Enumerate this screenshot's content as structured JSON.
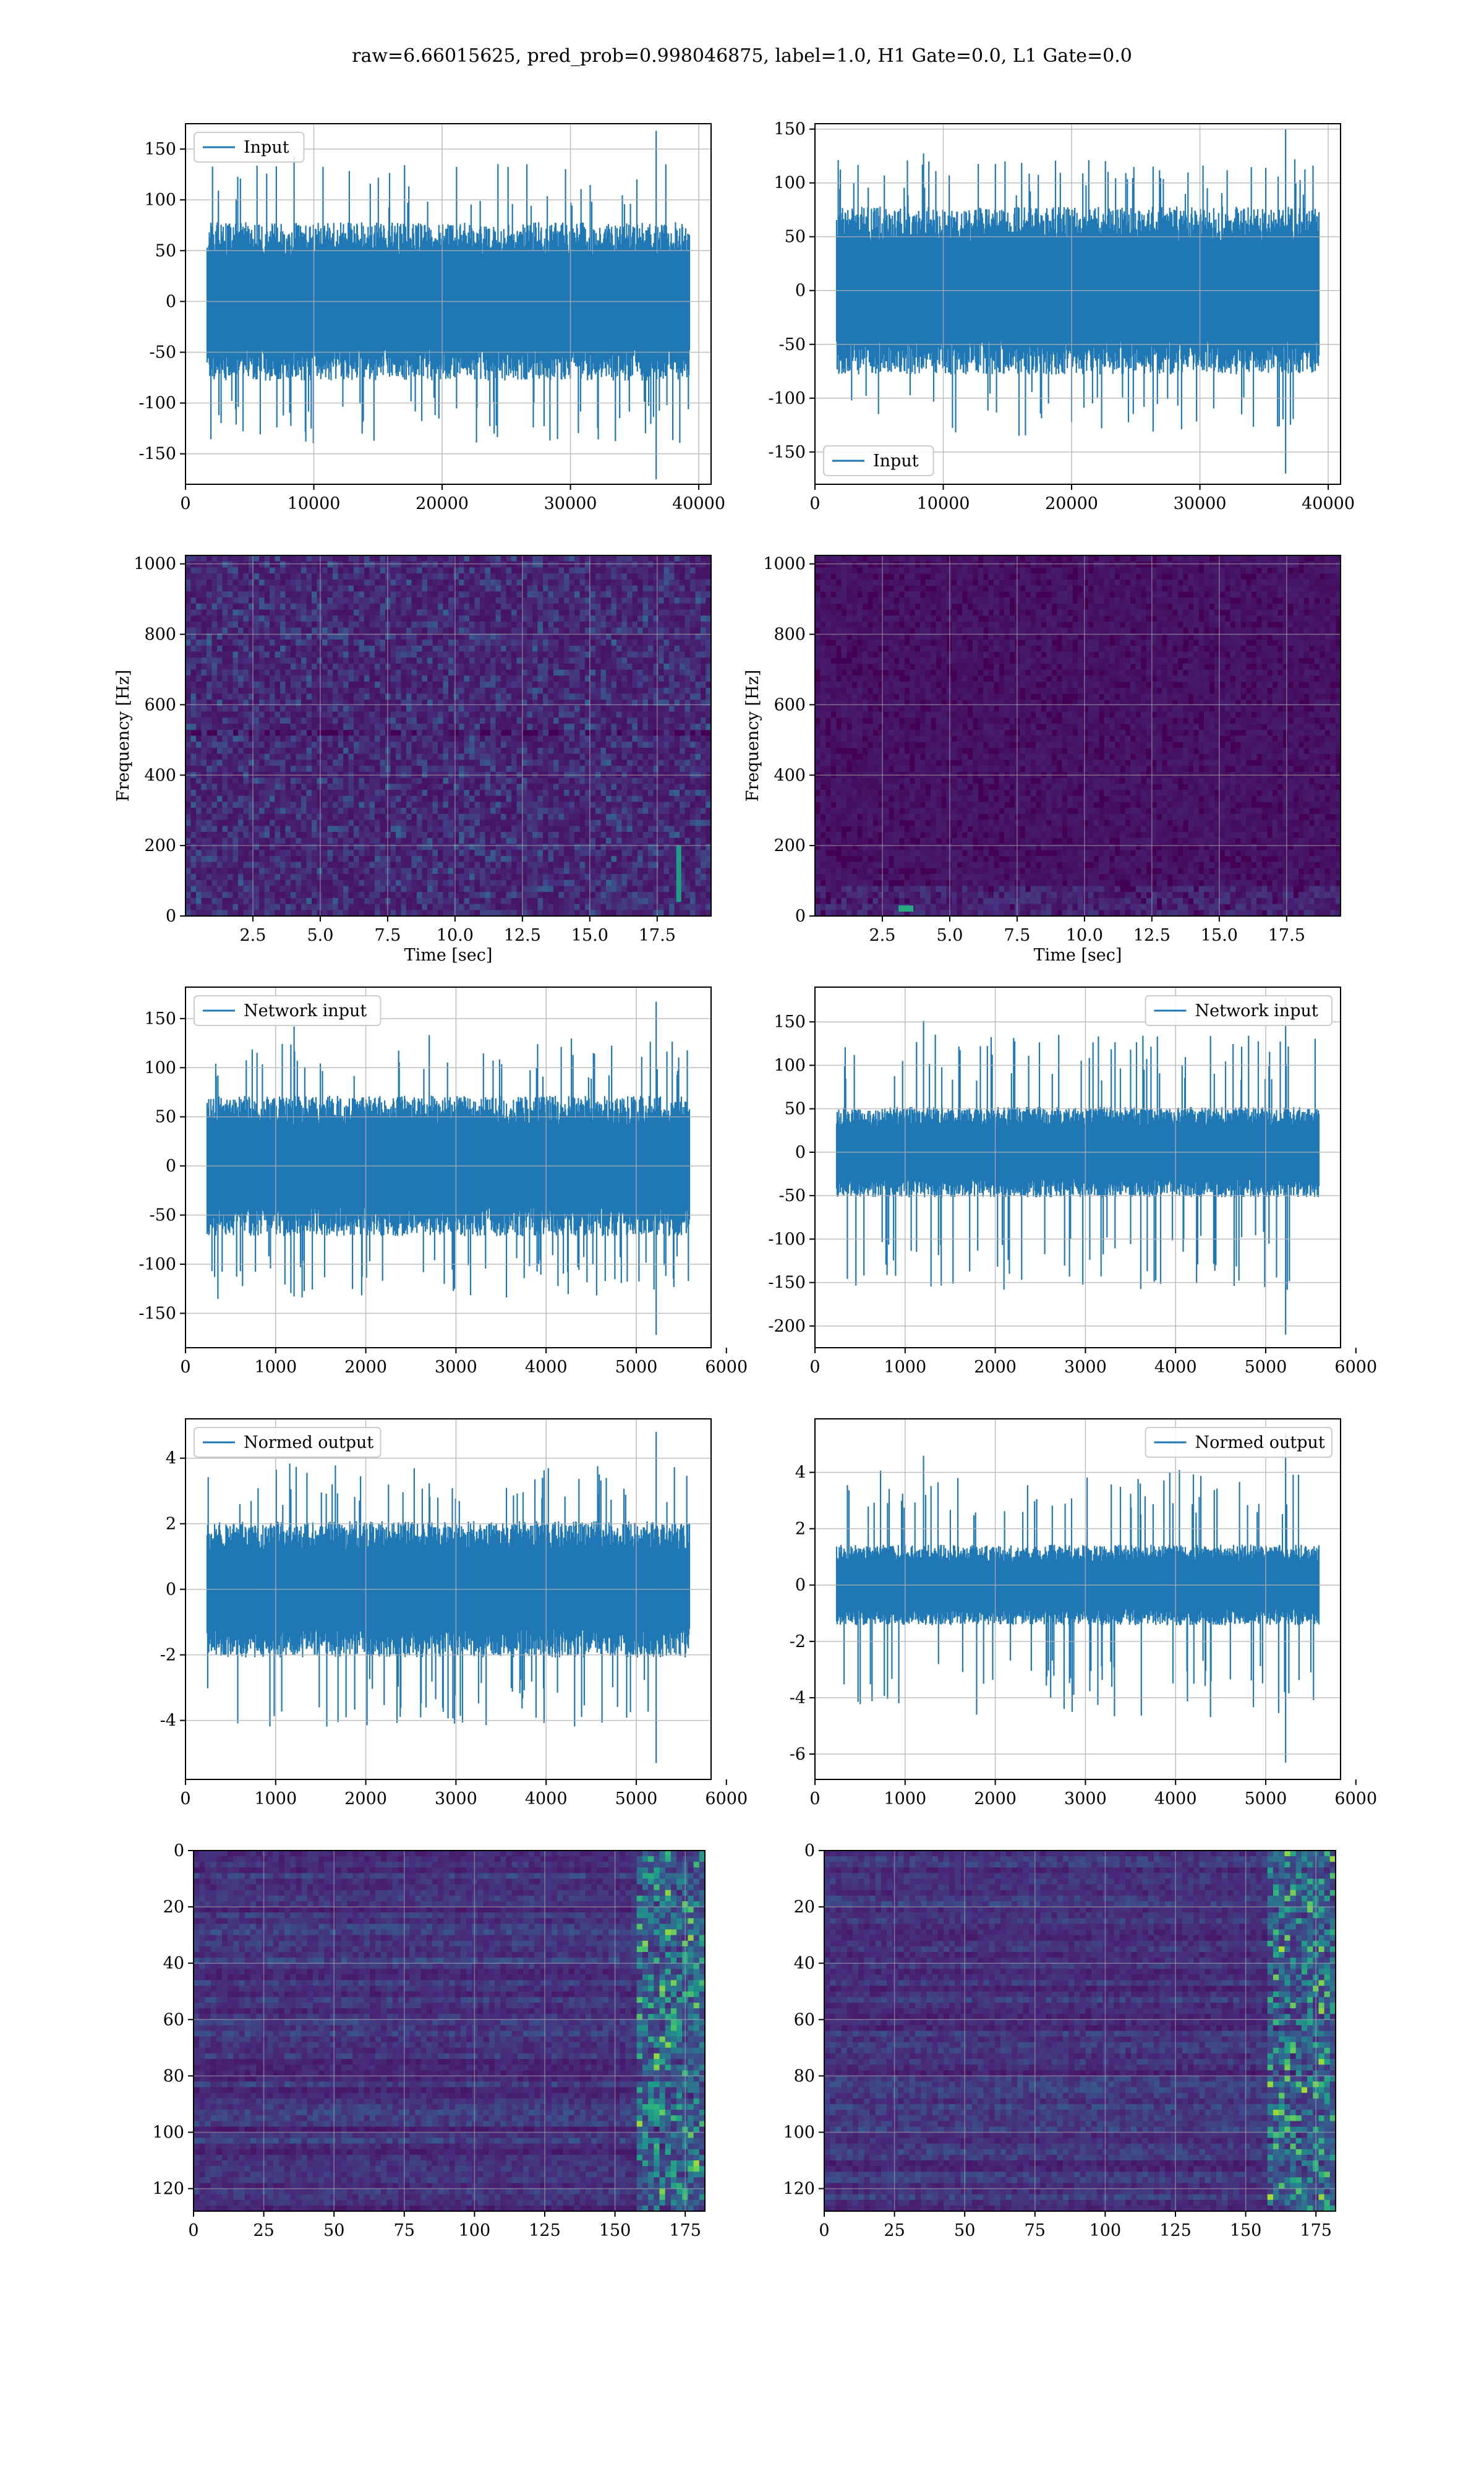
{
  "figure": {
    "title": "raw=6.66015625, pred_prob=0.998046875, label=1.0, H1 Gate=0.0, L1 Gate=0.0"
  },
  "colors": {
    "series": "#1f77b4",
    "grid": "#b0b0b0",
    "axes": "#000000",
    "colormap": "viridis",
    "heat_background": "#440154"
  },
  "chart_data": [
    {
      "id": "input-left",
      "type": "line",
      "legend": "Input",
      "legend_placement": "upper-left",
      "x_range": [
        0,
        40960
      ],
      "ylim": [
        -180,
        175
      ],
      "x_ticks": [
        0,
        10000,
        20000,
        30000,
        40000
      ],
      "y_ticks": [
        -150,
        -100,
        -50,
        0,
        50,
        100,
        150
      ],
      "envelope": {
        "low": -60,
        "high": 60,
        "peak_low": -175,
        "peak_high": 168
      },
      "grid": true
    },
    {
      "id": "input-right",
      "type": "line",
      "legend": "Input",
      "legend_placement": "lower-left",
      "x_range": [
        0,
        40960
      ],
      "ylim": [
        -180,
        155
      ],
      "x_ticks": [
        0,
        10000,
        20000,
        30000,
        40000
      ],
      "y_ticks": [
        -150,
        -100,
        -50,
        0,
        50,
        100,
        150
      ],
      "envelope": {
        "low": -60,
        "high": 60,
        "peak_low": -170,
        "peak_high": 150
      },
      "grid": true
    },
    {
      "id": "spectrogram-left",
      "type": "heatmap",
      "xlabel": "Time [sec]",
      "ylabel": "Frequency [Hz]",
      "x_range": [
        0,
        19.5
      ],
      "ylim": [
        0,
        1024
      ],
      "x_ticks": [
        "2.5",
        "5.0",
        "7.5",
        "10.0",
        "12.5",
        "15.0",
        "17.5"
      ],
      "y_ticks": [
        0,
        200,
        400,
        600,
        800,
        1000
      ],
      "intensity": "moderate",
      "grid": true
    },
    {
      "id": "spectrogram-right",
      "type": "heatmap",
      "xlabel": "Time [sec]",
      "ylabel": "Frequency [Hz]",
      "x_range": [
        0,
        19.5
      ],
      "ylim": [
        0,
        1024
      ],
      "x_ticks": [
        "2.5",
        "5.0",
        "7.5",
        "10.0",
        "12.5",
        "15.0",
        "17.5"
      ],
      "y_ticks": [
        0,
        200,
        400,
        600,
        800,
        1000
      ],
      "intensity": "low",
      "grid": true
    },
    {
      "id": "network-left",
      "type": "line",
      "legend": "Network input",
      "legend_placement": "upper-left",
      "x_range": [
        0,
        5830
      ],
      "ylim": [
        -185,
        182
      ],
      "x_ticks": [
        0,
        1000,
        2000,
        3000,
        4000,
        5000,
        6000
      ],
      "y_ticks": [
        -150,
        -100,
        -50,
        0,
        50,
        100,
        150
      ],
      "envelope": {
        "low": -55,
        "high": 55,
        "peak_low": -172,
        "peak_high": 167
      },
      "grid": true
    },
    {
      "id": "network-right",
      "type": "line",
      "legend": "Network input",
      "legend_placement": "upper-right",
      "x_range": [
        0,
        5830
      ],
      "ylim": [
        -225,
        190
      ],
      "x_ticks": [
        0,
        1000,
        2000,
        3000,
        4000,
        5000,
        6000
      ],
      "y_ticks": [
        -200,
        -150,
        -100,
        -50,
        0,
        50,
        100,
        150
      ],
      "envelope": {
        "low": -40,
        "high": 40,
        "peak_low": -210,
        "peak_high": 178
      },
      "grid": true
    },
    {
      "id": "normed-left",
      "type": "line",
      "legend": "Normed output",
      "legend_placement": "upper-left",
      "x_range": [
        0,
        5830
      ],
      "ylim": [
        -5.8,
        5.2
      ],
      "x_ticks": [
        0,
        1000,
        2000,
        3000,
        4000,
        5000,
        6000
      ],
      "y_ticks": [
        -4,
        -2,
        0,
        2,
        4
      ],
      "envelope": {
        "low": -1.6,
        "high": 1.6,
        "peak_low": -5.3,
        "peak_high": 4.8
      },
      "grid": true
    },
    {
      "id": "normed-right",
      "type": "line",
      "legend": "Normed output",
      "legend_placement": "upper-right",
      "x_range": [
        0,
        5830
      ],
      "ylim": [
        -6.9,
        5.9
      ],
      "x_ticks": [
        0,
        1000,
        2000,
        3000,
        4000,
        5000,
        6000
      ],
      "y_ticks": [
        -6,
        -4,
        -2,
        0,
        2,
        4
      ],
      "envelope": {
        "low": -1.1,
        "high": 1.1,
        "peak_low": -6.3,
        "peak_high": 5.4
      },
      "grid": true
    },
    {
      "id": "features-left",
      "type": "heatmap",
      "x_range": [
        0,
        182
      ],
      "ylim": [
        0,
        128
      ],
      "y_inverted": true,
      "x_ticks": [
        0,
        25,
        50,
        75,
        100,
        125,
        150,
        175
      ],
      "y_ticks": [
        0,
        20,
        40,
        60,
        80,
        100,
        120
      ],
      "intensity": "rows",
      "grid": true
    },
    {
      "id": "features-right",
      "type": "heatmap",
      "x_range": [
        0,
        182
      ],
      "ylim": [
        0,
        128
      ],
      "y_inverted": true,
      "x_ticks": [
        0,
        25,
        50,
        75,
        100,
        125,
        150,
        175
      ],
      "y_ticks": [
        0,
        20,
        40,
        60,
        80,
        100,
        120
      ],
      "intensity": "rows",
      "grid": true
    }
  ]
}
